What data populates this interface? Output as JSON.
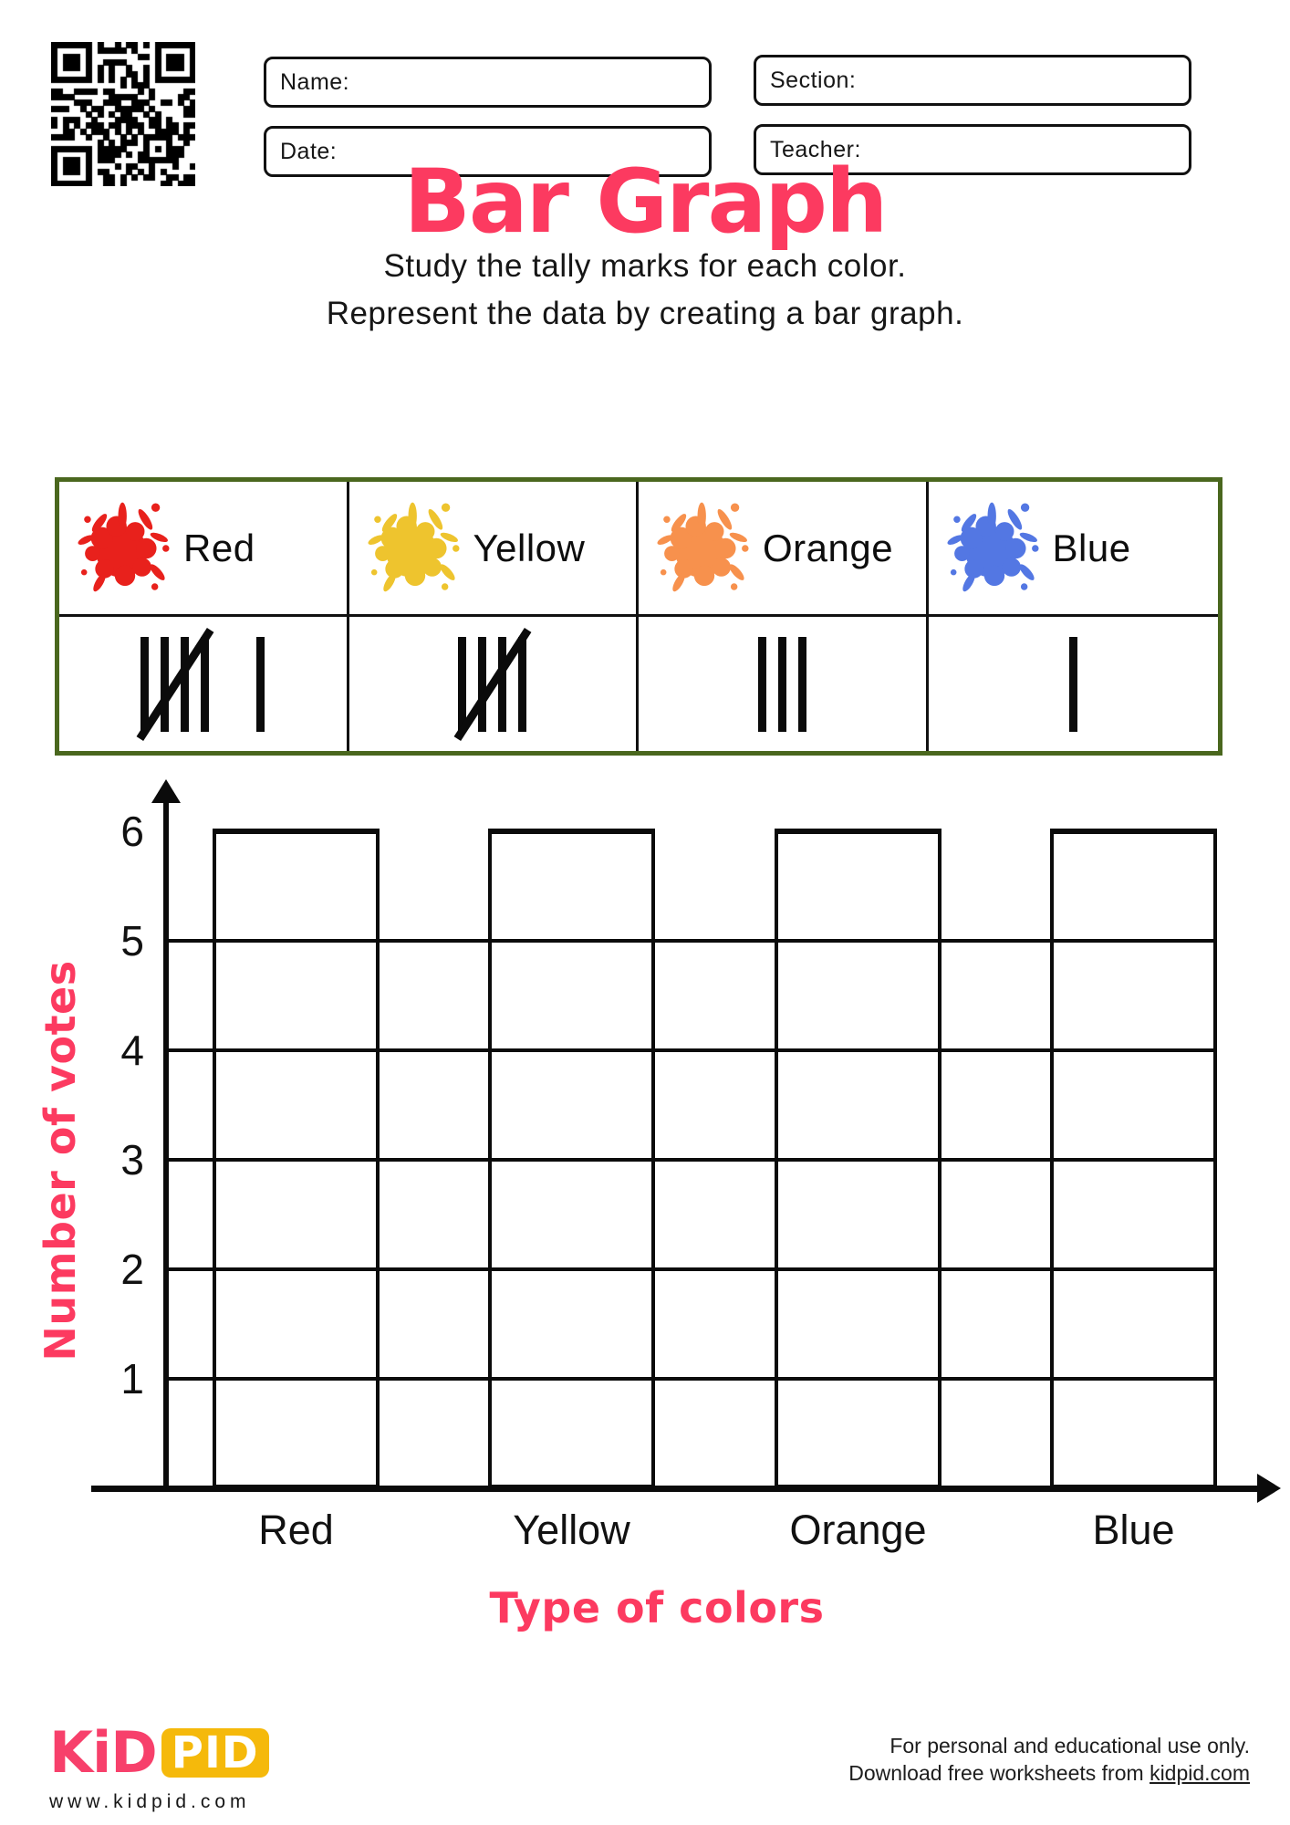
{
  "header": {
    "fields": {
      "name": "Name:",
      "section": "Section:",
      "date": "Date:",
      "teacher": "Teacher:"
    }
  },
  "title": {
    "text": "Bar Graph"
  },
  "instructions": {
    "line1": "Study the tally marks for each color.",
    "line2": "Represent the data by creating a bar graph."
  },
  "table": {
    "border_color": "#4a671e",
    "columns": [
      {
        "label": "Red",
        "splat_color": "#e8211c",
        "tally": 6
      },
      {
        "label": "Yellow",
        "splat_color": "#eec42e",
        "tally": 5
      },
      {
        "label": "Orange",
        "splat_color": "#f7914d",
        "tally": 3
      },
      {
        "label": "Blue",
        "splat_color": "#5377e3",
        "tally": 1
      }
    ]
  },
  "chart": {
    "y_ticks": [
      "6",
      "5",
      "4",
      "3",
      "2",
      "1"
    ],
    "categories": [
      "Red",
      "Yellow",
      "Orange",
      "Blue"
    ],
    "y_label": "Number of votes",
    "x_label": "Type of colors"
  },
  "chart_data": {
    "type": "bar",
    "title": "Bar Graph",
    "categories": [
      "Red",
      "Yellow",
      "Orange",
      "Blue"
    ],
    "values": [
      6,
      5,
      3,
      1
    ],
    "xlabel": "Type of colors",
    "ylabel": "Number of votes",
    "ylim": [
      0,
      6
    ],
    "y_ticks": [
      1,
      2,
      3,
      4,
      5,
      6
    ],
    "bars_empty": true,
    "grid": true,
    "legend": false
  },
  "footer": {
    "logo_kid": "KiD",
    "logo_pid": "PID",
    "logo_url": "www.kidpid.com",
    "note1": "For personal and educational use only.",
    "note2_prefix": "Download free worksheets from ",
    "note2_link": "kidpid.com"
  },
  "colors": {
    "accent_pink": "#fc3a60",
    "table_border_green": "#4a671e",
    "splat_red": "#e8211c",
    "splat_yellow": "#eec42e",
    "splat_orange": "#f7914d",
    "splat_blue": "#5377e3",
    "logo_pink": "#f7406b",
    "logo_yellow": "#f5b90b",
    "ink": "#0b0b0b"
  }
}
